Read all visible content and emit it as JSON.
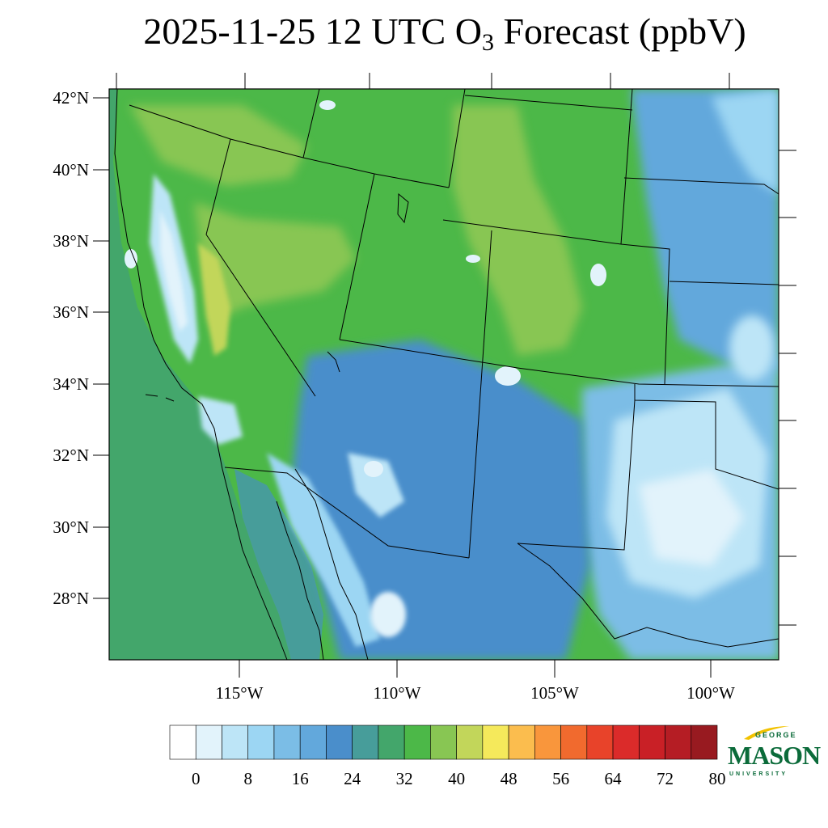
{
  "title": {
    "prefix": "2025-11-25 12 UTC O",
    "subscript": "3",
    "suffix": " Forecast (ppbV)"
  },
  "map": {
    "lat_labels": [
      "42°N",
      "40°N",
      "38°N",
      "36°N",
      "34°N",
      "32°N",
      "30°N",
      "28°N"
    ],
    "lon_labels": [
      "115°W",
      "110°W",
      "105°W",
      "100°W"
    ],
    "color_regions": [
      {
        "name": "pacific-ocean",
        "color": "#4aa673",
        "ppbv": 32
      },
      {
        "name": "great-basin",
        "color": "#4cb848",
        "ppbv": 36
      },
      {
        "name": "central-valley",
        "color": "#a8e6f8",
        "ppbv": 8
      },
      {
        "name": "southern-plains",
        "color": "#a7d8f0",
        "ppbv": 12
      },
      {
        "name": "northern-plains",
        "color": "#5aa7da",
        "ppbv": 20
      }
    ]
  },
  "colorbar": {
    "colors": [
      "#ffffff",
      "#e2f3fb",
      "#bde5f7",
      "#9cd6f3",
      "#7bbde6",
      "#62a8dc",
      "#4a8ecb",
      "#479d9a",
      "#43a66b",
      "#4cb848",
      "#88c653",
      "#c2d65a",
      "#f5e95b",
      "#fbbd4e",
      "#f9963c",
      "#f16a2e",
      "#e8432a",
      "#db2b2a",
      "#c92026",
      "#b51d24",
      "#981a20"
    ],
    "labels": [
      "0",
      "8",
      "16",
      "24",
      "32",
      "40",
      "48",
      "56",
      "64",
      "72",
      "80"
    ]
  },
  "logo": {
    "line1": "GEORGE",
    "line2": "MASON",
    "line3": "UNIVERSITY",
    "color": "#0b6b3a",
    "accent": "#f2c200"
  }
}
